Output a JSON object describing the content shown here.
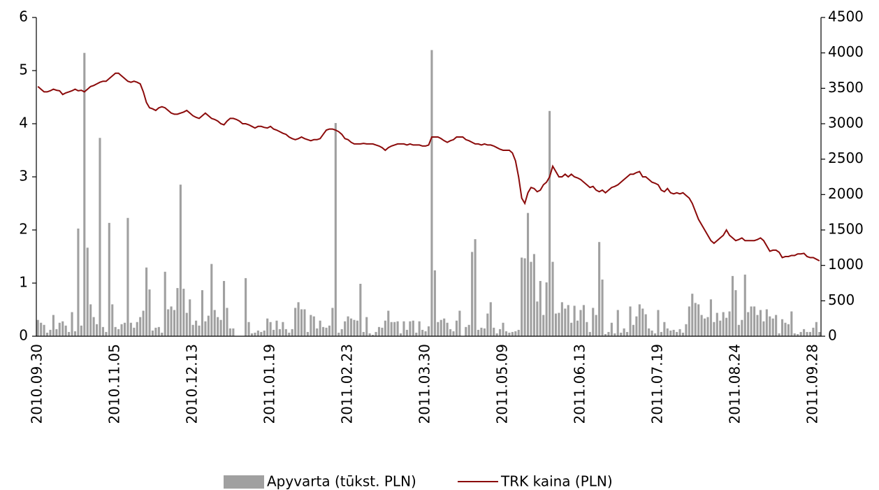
{
  "chart_data": {
    "type": "bar-line",
    "categories": [
      "2010.09.30",
      null,
      null,
      null,
      null,
      null,
      null,
      null,
      null,
      null,
      null,
      null,
      null,
      null,
      null,
      null,
      null,
      null,
      null,
      null,
      null,
      null,
      null,
      null,
      null,
      "2010.11.05",
      null,
      null,
      null,
      null,
      null,
      null,
      null,
      null,
      null,
      null,
      null,
      null,
      null,
      null,
      null,
      null,
      null,
      null,
      null,
      null,
      null,
      null,
      null,
      null,
      "2010.12.13",
      null,
      null,
      null,
      null,
      null,
      null,
      null,
      null,
      null,
      null,
      null,
      null,
      null,
      null,
      null,
      null,
      null,
      null,
      null,
      null,
      null,
      null,
      null,
      null,
      "2011.01.19",
      null,
      null,
      null,
      null,
      null,
      null,
      null,
      null,
      null,
      null,
      null,
      null,
      null,
      null,
      null,
      null,
      null,
      null,
      null,
      null,
      null,
      null,
      null,
      null,
      "2011.02.23",
      null,
      null,
      null,
      null,
      null,
      null,
      null,
      null,
      null,
      null,
      null,
      null,
      null,
      null,
      null,
      null,
      null,
      null,
      null,
      null,
      null,
      null,
      null,
      null,
      "2011.03.30",
      null,
      null,
      null,
      null,
      null,
      null,
      null,
      null,
      null,
      null,
      null,
      null,
      null,
      null,
      null,
      null,
      null,
      null,
      null,
      null,
      null,
      null,
      null,
      null,
      "2011.05.09",
      null,
      null,
      null,
      null,
      null,
      null,
      null,
      null,
      null,
      null,
      null,
      null,
      null,
      null,
      null,
      null,
      null,
      null,
      null,
      null,
      null,
      null,
      null,
      null,
      "2011.06.13",
      null,
      null,
      null,
      null,
      null,
      null,
      null,
      null,
      null,
      null,
      null,
      null,
      null,
      null,
      null,
      null,
      null,
      null,
      null,
      null,
      null,
      null,
      null,
      null,
      "2011.07.19",
      null,
      null,
      null,
      null,
      null,
      null,
      null,
      null,
      null,
      null,
      null,
      null,
      null,
      null,
      null,
      null,
      null,
      null,
      null,
      null,
      null,
      null,
      null,
      null,
      "2011.08.24",
      null,
      null,
      null,
      null,
      null,
      null,
      null,
      null,
      null,
      null,
      null,
      null,
      null,
      null,
      null,
      null,
      null,
      null,
      null,
      null,
      null,
      null,
      null,
      null,
      "2011.09.28",
      null,
      null
    ],
    "series": [
      {
        "name": "Apyvarta (tūkst. PLN)",
        "type": "bar",
        "axis": "y2",
        "color": "#a0a0a0",
        "values": [
          230,
          190,
          160,
          50,
          90,
          300,
          100,
          190,
          210,
          150,
          60,
          340,
          70,
          1520,
          150,
          4000,
          1250,
          450,
          270,
          170,
          2800,
          130,
          60,
          1600,
          450,
          130,
          100,
          170,
          190,
          1670,
          190,
          120,
          200,
          270,
          360,
          970,
          660,
          80,
          120,
          130,
          50,
          910,
          380,
          420,
          370,
          680,
          2140,
          670,
          330,
          520,
          160,
          220,
          150,
          650,
          210,
          290,
          1020,
          370,
          270,
          230,
          780,
          400,
          110,
          110,
          0,
          0,
          0,
          820,
          200,
          40,
          50,
          80,
          60,
          80,
          250,
          200,
          90,
          220,
          100,
          200,
          100,
          50,
          100,
          400,
          480,
          380,
          380,
          60,
          300,
          280,
          110,
          220,
          130,
          120,
          150,
          400,
          3010,
          50,
          100,
          210,
          280,
          250,
          230,
          220,
          740,
          60,
          270,
          40,
          20,
          60,
          130,
          120,
          220,
          360,
          200,
          200,
          210,
          40,
          210,
          90,
          210,
          220,
          50,
          210,
          90,
          70,
          140,
          4040,
          930,
          200,
          230,
          250,
          190,
          100,
          70,
          220,
          360,
          0,
          130,
          160,
          1190,
          1370,
          90,
          120,
          110,
          320,
          480,
          120,
          40,
          100,
          190,
          70,
          50,
          60,
          70,
          90,
          1110,
          1100,
          1740,
          1050,
          1160,
          490,
          780,
          300,
          760,
          3180,
          1050,
          320,
          330,
          480,
          390,
          440,
          190,
          430,
          220,
          370,
          440,
          200,
          60,
          400,
          300,
          1330,
          800,
          30,
          60,
          190,
          40,
          370,
          50,
          110,
          60,
          420,
          160,
          280,
          450,
          390,
          310,
          110,
          80,
          40,
          370,
          60,
          200,
          110,
          80,
          90,
          60,
          100,
          50,
          170,
          420,
          600,
          470,
          450,
          300,
          250,
          270,
          520,
          200,
          330,
          220,
          340,
          260,
          350,
          850,
          650,
          160,
          230,
          870,
          340,
          420,
          420,
          300,
          370,
          210,
          380,
          280,
          250,
          300,
          40,
          240,
          190,
          170,
          350,
          40,
          30,
          60,
          100,
          60,
          60,
          120,
          200,
          60
        ]
      },
      {
        "name": "TRK kaina (PLN)",
        "type": "line",
        "axis": "y",
        "color": "#8b0a0a",
        "values": [
          4.7,
          4.65,
          4.6,
          4.6,
          4.62,
          4.65,
          4.63,
          4.62,
          4.55,
          4.58,
          4.6,
          4.62,
          4.65,
          4.62,
          4.63,
          4.6,
          4.65,
          4.7,
          4.72,
          4.75,
          4.78,
          4.8,
          4.8,
          4.85,
          4.9,
          4.95,
          4.95,
          4.9,
          4.85,
          4.8,
          4.78,
          4.8,
          4.78,
          4.75,
          4.6,
          4.4,
          4.3,
          4.28,
          4.25,
          4.3,
          4.32,
          4.3,
          4.25,
          4.2,
          4.18,
          4.18,
          4.2,
          4.22,
          4.25,
          4.2,
          4.15,
          4.12,
          4.1,
          4.15,
          4.2,
          4.15,
          4.1,
          4.08,
          4.05,
          4.0,
          3.98,
          4.05,
          4.1,
          4.1,
          4.08,
          4.05,
          4.0,
          4.0,
          3.98,
          3.95,
          3.92,
          3.95,
          3.95,
          3.93,
          3.92,
          3.95,
          3.9,
          3.88,
          3.85,
          3.82,
          3.8,
          3.75,
          3.72,
          3.7,
          3.72,
          3.75,
          3.72,
          3.7,
          3.68,
          3.7,
          3.7,
          3.72,
          3.8,
          3.88,
          3.9,
          3.9,
          3.88,
          3.85,
          3.8,
          3.72,
          3.7,
          3.65,
          3.62,
          3.62,
          3.62,
          3.63,
          3.62,
          3.62,
          3.62,
          3.6,
          3.58,
          3.55,
          3.5,
          3.55,
          3.58,
          3.6,
          3.62,
          3.62,
          3.62,
          3.6,
          3.62,
          3.6,
          3.6,
          3.6,
          3.58,
          3.58,
          3.6,
          3.75,
          3.75,
          3.75,
          3.72,
          3.68,
          3.65,
          3.68,
          3.7,
          3.75,
          3.75,
          3.75,
          3.7,
          3.68,
          3.65,
          3.62,
          3.62,
          3.6,
          3.62,
          3.6,
          3.6,
          3.58,
          3.55,
          3.52,
          3.5,
          3.5,
          3.5,
          3.45,
          3.3,
          3.0,
          2.6,
          2.5,
          2.7,
          2.8,
          2.78,
          2.72,
          2.75,
          2.85,
          2.9,
          3.0,
          3.2,
          3.1,
          3.0,
          3.0,
          3.05,
          3.0,
          3.05,
          3.0,
          2.98,
          2.95,
          2.9,
          2.85,
          2.8,
          2.82,
          2.75,
          2.72,
          2.75,
          2.7,
          2.75,
          2.8,
          2.82,
          2.85,
          2.9,
          2.95,
          3.0,
          3.05,
          3.05,
          3.08,
          3.1,
          3.0,
          3.0,
          2.95,
          2.9,
          2.88,
          2.85,
          2.75,
          2.72,
          2.78,
          2.7,
          2.68,
          2.7,
          2.68,
          2.7,
          2.65,
          2.6,
          2.5,
          2.35,
          2.2,
          2.1,
          2.0,
          1.9,
          1.8,
          1.75,
          1.8,
          1.85,
          1.9,
          2.0,
          1.9,
          1.85,
          1.8,
          1.82,
          1.85,
          1.8,
          1.8,
          1.8,
          1.8,
          1.82,
          1.85,
          1.8,
          1.7,
          1.6,
          1.62,
          1.62,
          1.58,
          1.48,
          1.5,
          1.5,
          1.52,
          1.52,
          1.55,
          1.55,
          1.56,
          1.5,
          1.48,
          1.48,
          1.45,
          1.42
        ]
      }
    ],
    "ylim": [
      0,
      6
    ],
    "yticks": [
      0,
      1,
      2,
      3,
      4,
      5,
      6
    ],
    "y2lim": [
      0,
      4500
    ],
    "y2ticks": [
      0,
      500,
      1000,
      1500,
      2000,
      2500,
      3000,
      3500,
      4000,
      4500
    ],
    "legend": "bottom"
  }
}
